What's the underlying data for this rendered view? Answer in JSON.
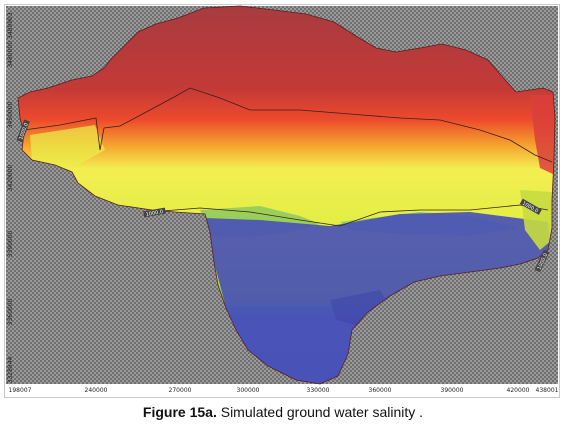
{
  "figure": {
    "label": "Figure 15a.",
    "caption": "Simulated ground water salinity ."
  },
  "map": {
    "x_ticks": [
      "198007",
      "240000",
      "270000",
      "300000",
      "330000",
      "360000",
      "390000",
      "420000",
      "438001"
    ],
    "y_ticks": [
      "3480000 3489903",
      "3450000",
      "3420000",
      "3390000",
      "3360000",
      "3328844"
    ],
    "contour_labels": [
      "1000.0",
      "1000.0",
      "1000.0",
      "1000.0"
    ],
    "legend_colors": {
      "high": "#c8363a",
      "mid_high": "#f06a2a",
      "mid": "#eef24c",
      "mid_low": "#a8d83c",
      "transition": "#3aa8a0",
      "low": "#4a55b8",
      "no_data": "#8a8a8a"
    }
  }
}
